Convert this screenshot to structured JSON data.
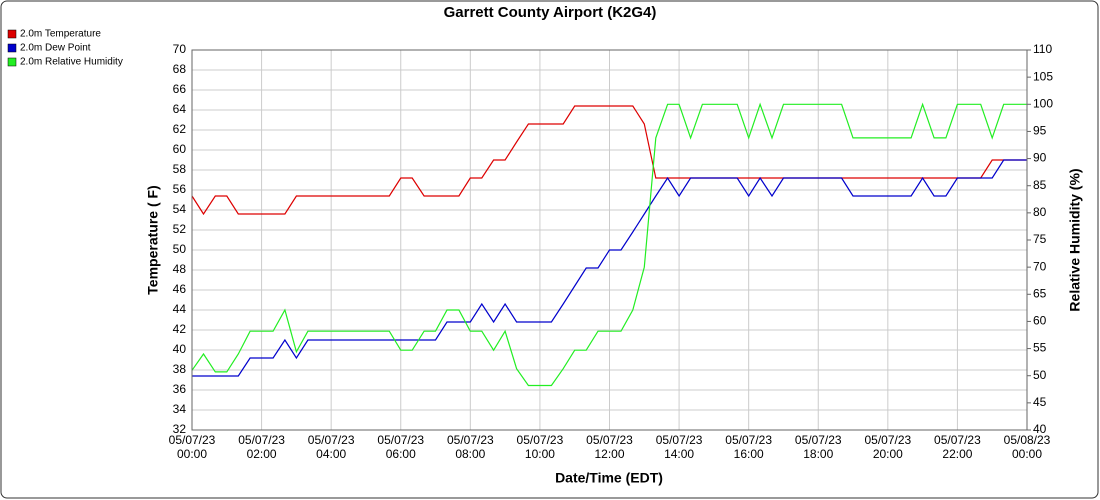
{
  "chart_data": {
    "type": "line",
    "title": "Garrett County Airport (K2G4)",
    "x_label": "Date/Time (EDT)",
    "y_label": "Temperature ( F)",
    "y2_label": "Relative Humidity (%)",
    "x": [
      0,
      0.33,
      0.67,
      1,
      1.33,
      1.67,
      2,
      2.33,
      2.67,
      3,
      3.33,
      3.67,
      4,
      4.33,
      4.67,
      5,
      5.33,
      5.67,
      6,
      6.33,
      6.67,
      7,
      7.33,
      7.67,
      8,
      8.33,
      8.67,
      9,
      9.33,
      9.67,
      10,
      10.33,
      10.67,
      11,
      11.33,
      11.67,
      12,
      12.33,
      12.67,
      13,
      13.33,
      13.67,
      14,
      14.33,
      14.67,
      15,
      15.33,
      15.67,
      16,
      16.33,
      16.67,
      17,
      17.33,
      17.67,
      18,
      18.33,
      18.67,
      19,
      19.33,
      19.67,
      20,
      20.33,
      20.67,
      21,
      21.33,
      21.67,
      22,
      22.33,
      22.67,
      23,
      23.33,
      23.67,
      24
    ],
    "series": [
      {
        "name": "2.0m Temperature",
        "color": "#dd0000",
        "axis": "y",
        "values": [
          55.4,
          53.6,
          55.4,
          55.4,
          53.6,
          53.6,
          53.6,
          53.6,
          53.6,
          55.4,
          55.4,
          55.4,
          55.4,
          55.4,
          55.4,
          55.4,
          55.4,
          55.4,
          57.2,
          57.2,
          55.4,
          55.4,
          55.4,
          55.4,
          57.2,
          57.2,
          59,
          59,
          60.8,
          62.6,
          62.6,
          62.6,
          62.6,
          64.4,
          64.4,
          64.4,
          64.4,
          64.4,
          64.4,
          62.6,
          57.2,
          57.2,
          57.2,
          57.2,
          57.2,
          57.2,
          57.2,
          57.2,
          57.2,
          57.2,
          57.2,
          57.2,
          57.2,
          57.2,
          57.2,
          57.2,
          57.2,
          57.2,
          57.2,
          57.2,
          57.2,
          57.2,
          57.2,
          57.2,
          57.2,
          57.2,
          57.2,
          57.2,
          57.2,
          59,
          59,
          59,
          59
        ]
      },
      {
        "name": "2.0m Dew Point",
        "color": "#0000cc",
        "axis": "y",
        "values": [
          37.4,
          37.4,
          37.4,
          37.4,
          37.4,
          39.2,
          39.2,
          39.2,
          41,
          39.2,
          41,
          41,
          41,
          41,
          41,
          41,
          41,
          41,
          41,
          41,
          41,
          41,
          42.8,
          42.8,
          42.8,
          44.6,
          42.8,
          44.6,
          42.8,
          42.8,
          42.8,
          42.8,
          44.6,
          46.4,
          48.2,
          48.2,
          50,
          50,
          51.8,
          53.6,
          55.4,
          57.2,
          55.4,
          57.2,
          57.2,
          57.2,
          57.2,
          57.2,
          55.4,
          57.2,
          55.4,
          57.2,
          57.2,
          57.2,
          57.2,
          57.2,
          57.2,
          55.4,
          55.4,
          55.4,
          55.4,
          55.4,
          55.4,
          57.2,
          55.4,
          55.4,
          57.2,
          57.2,
          57.2,
          57.2,
          59,
          59,
          59
        ]
      },
      {
        "name": "2.0m Relative Humidity",
        "color": "#22ee22",
        "axis": "y2",
        "values": [
          51,
          54,
          50.7,
          50.7,
          54,
          58.2,
          58.2,
          58.2,
          62.1,
          54.4,
          58.2,
          58.2,
          58.2,
          58.2,
          58.2,
          58.2,
          58.2,
          58.2,
          54.7,
          54.7,
          58.2,
          58.2,
          62.1,
          62.1,
          58.2,
          58.2,
          54.7,
          58.2,
          51.3,
          48.2,
          48.2,
          48.2,
          51.3,
          54.7,
          54.7,
          58.2,
          58.2,
          58.2,
          62.1,
          70,
          93.8,
          100,
          100,
          93.8,
          100,
          100,
          100,
          100,
          93.8,
          100,
          93.8,
          100,
          100,
          100,
          100,
          100,
          100,
          93.8,
          93.8,
          93.8,
          93.8,
          93.8,
          93.8,
          100,
          93.8,
          93.8,
          100,
          100,
          100,
          93.8,
          100,
          100,
          100
        ]
      }
    ],
    "xlim": [
      0,
      24
    ],
    "xticks": [
      {
        "value": 0,
        "label": "05/07/23\n00:00"
      },
      {
        "value": 2,
        "label": "05/07/23\n02:00"
      },
      {
        "value": 4,
        "label": "05/07/23\n04:00"
      },
      {
        "value": 6,
        "label": "05/07/23\n06:00"
      },
      {
        "value": 8,
        "label": "05/07/23\n08:00"
      },
      {
        "value": 10,
        "label": "05/07/23\n10:00"
      },
      {
        "value": 12,
        "label": "05/07/23\n12:00"
      },
      {
        "value": 14,
        "label": "05/07/23\n14:00"
      },
      {
        "value": 16,
        "label": "05/07/23\n16:00"
      },
      {
        "value": 18,
        "label": "05/07/23\n18:00"
      },
      {
        "value": 20,
        "label": "05/07/23\n20:00"
      },
      {
        "value": 22,
        "label": "05/07/23\n22:00"
      },
      {
        "value": 24,
        "label": "05/08/23\n00:00"
      }
    ],
    "ylim": [
      32,
      70
    ],
    "yticks": [
      32,
      34,
      36,
      38,
      40,
      42,
      44,
      46,
      48,
      50,
      52,
      54,
      56,
      58,
      60,
      62,
      64,
      66,
      68,
      70
    ],
    "y2lim": [
      40,
      110
    ],
    "y2ticks": [
      40,
      45,
      50,
      55,
      60,
      65,
      70,
      75,
      80,
      85,
      90,
      95,
      100,
      105,
      110
    ],
    "grid": true,
    "legend": "top-left"
  }
}
